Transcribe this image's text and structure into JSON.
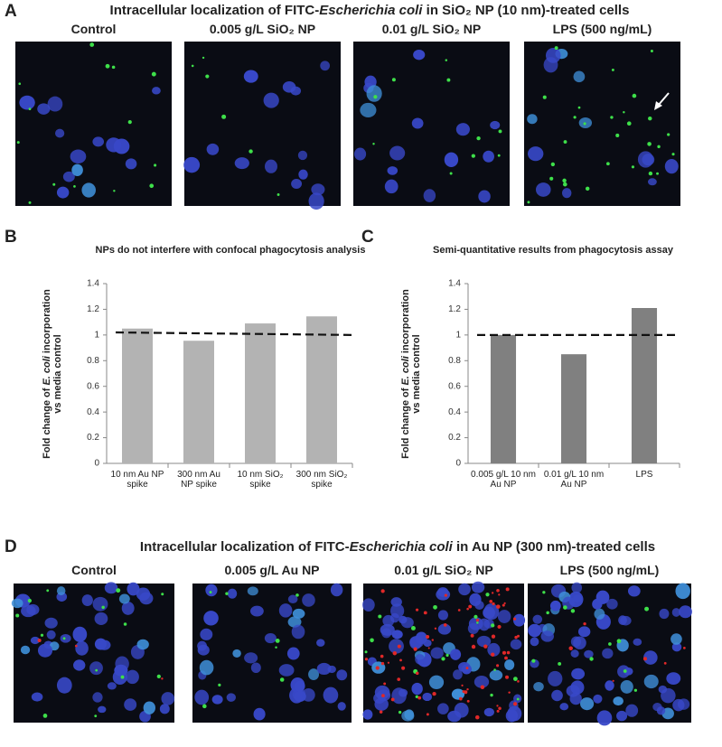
{
  "panel_a": {
    "letter": "A",
    "title": [
      "Intracellular localization of FITC-",
      "Escherichia coli",
      " in SiO₂ NP (10 nm)-treated cells"
    ],
    "image_labels": [
      "Control",
      "0.005 g/L SiO₂ NP",
      "0.01 g/L SiO₂ NP",
      "LPS (500 ng/mL)"
    ]
  },
  "panel_b": {
    "letter": "B"
  },
  "panel_c": {
    "letter": "C"
  },
  "chart_data": [
    {
      "type": "bar",
      "title": "NPs do not interfere with confocal phagocytosis analysis",
      "y_label": [
        "Fold change of ",
        "E. coli",
        " incorporation vs media control"
      ],
      "categories": [
        "10 nm Au NP spike",
        "300 nm Au NP spike",
        "10 nm SiO₂ spike",
        "300 nm SiO₂ spike"
      ],
      "values": [
        1.05,
        0.955,
        1.09,
        1.145
      ],
      "color": "#b3b3b3",
      "ylim": [
        0,
        1.4
      ],
      "yticks": [
        0,
        0.2,
        0.4,
        0.6,
        0.8,
        1,
        1.2,
        1.4
      ],
      "reference_line": [
        1.02,
        1.0
      ]
    },
    {
      "type": "bar",
      "title": "Semi-quantitative results from phagocytosis assay",
      "y_label": [
        "Fold change of ",
        "E. coli",
        " incorporation vs media control"
      ],
      "categories": [
        "0.005 g/L 10 nm Au NP",
        "0.01 g/L 10 nm Au NP",
        "LPS"
      ],
      "values": [
        1.0,
        0.85,
        1.21
      ],
      "color": "#808080",
      "ylim": [
        0,
        1.4
      ],
      "yticks": [
        0,
        0.2,
        0.4,
        0.6,
        0.8,
        1,
        1.2,
        1.4
      ],
      "reference_line": [
        1.0,
        1.0
      ]
    }
  ],
  "panel_d": {
    "letter": "D",
    "title": [
      "Intracellular localization of FITC-",
      "Escherichia coli",
      " in Au NP (300 nm)-treated cells"
    ],
    "image_labels": [
      "Control",
      "0.005 g/L Au NP",
      "0.01 g/L SiO₂ NP",
      "LPS (500 ng/mL)"
    ]
  }
}
